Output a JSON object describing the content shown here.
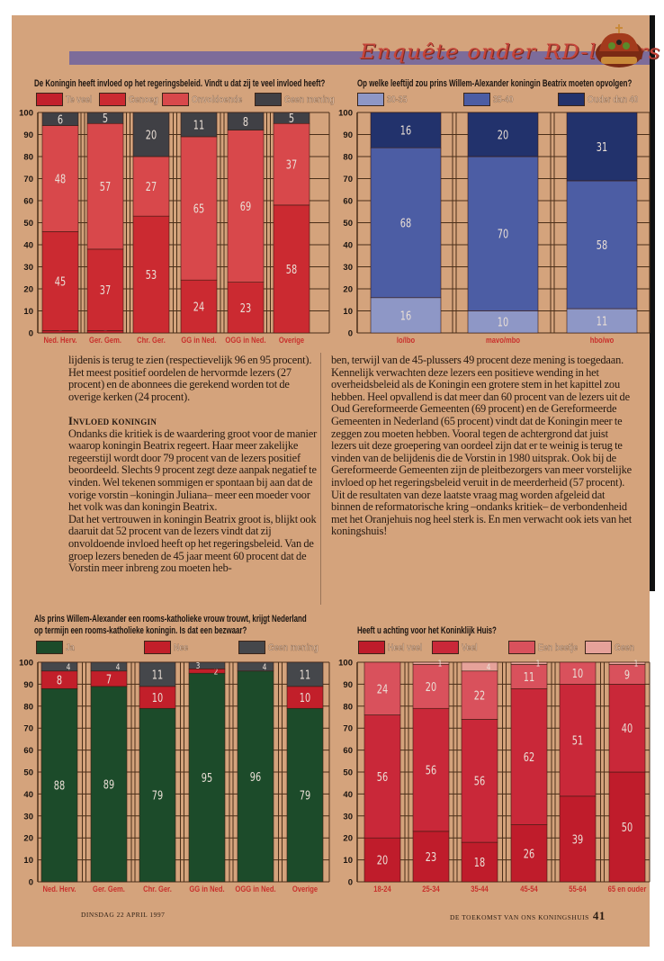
{
  "header": {
    "title": "Enquête onder RD-lezers",
    "crown_icon": "crown-icon"
  },
  "chart_data": [
    {
      "type": "bar",
      "stacked": true,
      "title": "De Koningin heeft invloed op het regeringsbeleid. Vindt u dat zij te veel invloed heeft?",
      "categories": [
        "Ned. Herv.",
        "Ger. Gem.",
        "Chr. Ger.",
        "GG in Ned.",
        "OGG in Ned.",
        "Overige"
      ],
      "y_ticks": [
        "0",
        "10",
        "20",
        "30",
        "40",
        "50",
        "60",
        "70",
        "80",
        "90",
        "100"
      ],
      "ylim": [
        0,
        100
      ],
      "grid": true,
      "legend_placement": "top",
      "series": [
        {
          "name": "Te veel",
          "color": "#c2202c",
          "values": [
            1,
            1,
            0,
            0,
            0,
            0
          ]
        },
        {
          "name": "Genoeg",
          "color": "#cb2a31",
          "values": [
            45,
            37,
            53,
            24,
            23,
            58
          ]
        },
        {
          "name": "Onvoldoende",
          "color": "#d8484b",
          "values": [
            48,
            57,
            27,
            65,
            69,
            37
          ]
        },
        {
          "name": "Geen mening",
          "color": "#404045",
          "values": [
            6,
            5,
            20,
            11,
            8,
            5
          ]
        }
      ]
    },
    {
      "type": "bar",
      "stacked": true,
      "title": "Op welke leeftijd zou prins Willem-Alexander koningin Beatrix moeten opvolgen?",
      "categories": [
        "lo/lbo",
        "mavo/mbo",
        "hbo/wo"
      ],
      "y_ticks": [
        "0",
        "10",
        "20",
        "30",
        "40",
        "50",
        "60",
        "70",
        "80",
        "90",
        "100"
      ],
      "ylim": [
        0,
        100
      ],
      "grid": true,
      "legend_placement": "top",
      "series": [
        {
          "name": "30-35",
          "color": "#8e97c6",
          "values": [
            16,
            10,
            11
          ]
        },
        {
          "name": "35-40",
          "color": "#4c5da4",
          "values": [
            68,
            70,
            58
          ]
        },
        {
          "name": "Ouder dan 40",
          "color": "#22326c",
          "values": [
            16,
            20,
            31
          ]
        }
      ]
    },
    {
      "type": "bar",
      "stacked": true,
      "title": "Als prins Willem-Alexander een rooms-katholieke vrouw trouwt, krijgt Nederland op termijn een rooms-katholieke koningin. Is dat een bezwaar?",
      "title_lines": [
        "Als prins Willem-Alexander een rooms-katholieke vrouw trouwt, krijgt Nederland",
        "op termijn een rooms-katholieke koningin. Is dat een bezwaar?"
      ],
      "categories": [
        "Ned. Herv.",
        "Ger. Gem.",
        "Chr. Ger.",
        "GG in Ned.",
        "OGG in Ned.",
        "Overige"
      ],
      "y_ticks": [
        "0",
        "10",
        "20",
        "30",
        "40",
        "50",
        "60",
        "70",
        "80",
        "90",
        "100"
      ],
      "ylim": [
        0,
        100
      ],
      "grid": true,
      "legend_placement": "top",
      "series": [
        {
          "name": "Ja",
          "color": "#1c4b2a",
          "values": [
            88,
            89,
            79,
            95,
            96,
            79
          ]
        },
        {
          "name": "Nee",
          "color": "#c21f2a",
          "values": [
            8,
            7,
            10,
            2,
            0,
            10
          ]
        },
        {
          "name": "Geen mening",
          "color": "#45474b",
          "values": [
            4,
            4,
            11,
            3,
            4,
            11
          ]
        }
      ]
    },
    {
      "type": "bar",
      "stacked": true,
      "title": "Heeft u achting voor het Koninklijk Huis?",
      "categories": [
        "18-24",
        "25-34",
        "35-44",
        "45-54",
        "55-64",
        "65 en ouder"
      ],
      "y_ticks": [
        "0",
        "10",
        "20",
        "30",
        "40",
        "50",
        "60",
        "70",
        "80",
        "90",
        "100"
      ],
      "ylim": [
        0,
        100
      ],
      "grid": true,
      "legend_placement": "top",
      "series": [
        {
          "name": "Heel veel",
          "color": "#bf1c2b",
          "values": [
            20,
            23,
            18,
            26,
            39,
            50
          ]
        },
        {
          "name": "Veel",
          "color": "#c92839",
          "values": [
            56,
            56,
            56,
            62,
            51,
            40
          ]
        },
        {
          "name": "Een beetje",
          "color": "#d9515c",
          "values": [
            24,
            20,
            22,
            11,
            10,
            9
          ]
        },
        {
          "name": "Geen",
          "color": "#e6a29a",
          "values": [
            0,
            1,
            4,
            1,
            0,
            1
          ]
        }
      ]
    }
  ],
  "article": {
    "left": {
      "p1": "lijdenis is terug te zien (respectievelijk 96 en 95 procent). Het meest positief oordelen de hervormde lezers (27 procent) en de abonnees die gerekend worden tot de overige kerken (24 procent).",
      "heading": "Invloed koningin",
      "p2": "Ondanks die kritiek is de waardering groot voor de manier waarop koningin Beatrix regeert. Haar meer zakelijke regeerstijl wordt door 79 procent van de lezers positief beoordeeld. Slechts 9 procent zegt deze aanpak negatief te vinden. Wel tekenen sommigen er spontaan bij aan dat de vorige vorstin –koningin Juliana– meer een moeder voor het volk was dan koningin Beatrix.",
      "p3": "Dat het vertrouwen in koningin Beatrix groot is, blijkt ook daaruit dat 52 procent van de lezers vindt dat zij onvoldoende invloed heeft op het regeringsbeleid. Van de groep lezers beneden de 45 jaar meent 60 procent dat de Vorstin meer inbreng zou moeten heb-"
    },
    "right": {
      "p1": "ben, terwijl van de 45-plussers 49 procent deze mening is toegedaan. Kennelijk verwachten deze lezers een positieve wending in het overheidsbeleid als de Koningin een grotere stem in het kapittel zou hebben. Heel opvallend is dat meer dan 60 procent van de lezers uit de Oud Gereformeerde Gemeenten (69 procent) en de Gereformeerde Gemeenten in Nederland (65 procent) vindt dat de Koningin meer te zeggen zou moeten hebben. Vooral tegen de achtergrond dat juist lezers uit deze groepering van oordeel zijn dat er te weinig is terug te vinden van de belijdenis die de Vorstin in 1980 uitsprak. Ook bij de Gereformeerde Gemeenten zijn de pleitbezorgers van meer vorstelijke invloed op het regeringsbeleid veruit in de meerderheid (57 procent). Uit de resultaten van deze laatste vraag mag worden afgeleid dat binnen de reformatorische kring –ondanks kritiek– de verbondenheid met het Oranjehuis nog heel sterk is. En men verwacht ook iets van het koningshuis!"
    }
  },
  "footer": {
    "date": "DINSDAG 22 APRIL 1997",
    "section": "DE TOEKOMST VAN ONS KONINGSHUIS",
    "page_number": "41"
  }
}
